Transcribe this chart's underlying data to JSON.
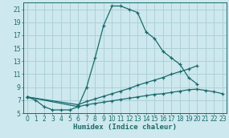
{
  "xlabel": "Humidex (Indice chaleur)",
  "background_color": "#cde8ee",
  "grid_color": "#aacdd6",
  "line_color": "#1a6b6b",
  "xlim": [
    -0.5,
    23.5
  ],
  "ylim": [
    5,
    22
  ],
  "yticks": [
    5,
    7,
    9,
    11,
    13,
    15,
    17,
    19,
    21
  ],
  "xticks": [
    0,
    1,
    2,
    3,
    4,
    5,
    6,
    7,
    8,
    9,
    10,
    11,
    12,
    13,
    14,
    15,
    16,
    17,
    18,
    19,
    20,
    21,
    22,
    23
  ],
  "s1x": [
    0,
    1,
    2,
    3,
    4,
    5,
    6,
    7,
    8,
    9,
    10,
    11,
    12,
    13,
    14,
    15,
    16,
    17,
    18,
    19,
    20
  ],
  "s1y": [
    7.5,
    7.0,
    6.0,
    5.5,
    5.5,
    5.5,
    6.0,
    9.0,
    13.5,
    18.5,
    21.5,
    21.5,
    21.0,
    20.5,
    17.5,
    16.5,
    14.5,
    13.5,
    12.5,
    10.5,
    9.5
  ],
  "s2x": [
    0,
    6,
    7,
    8,
    9,
    10,
    11,
    12,
    13,
    14,
    15,
    16,
    17,
    18,
    19,
    20
  ],
  "s2y": [
    7.5,
    6.3,
    6.8,
    7.2,
    7.6,
    8.0,
    8.4,
    8.8,
    9.3,
    9.7,
    10.1,
    10.5,
    11.0,
    11.4,
    11.8,
    12.3
  ],
  "s3x": [
    0,
    6,
    7,
    8,
    9,
    10,
    11,
    12,
    13,
    14,
    15,
    16,
    17,
    18,
    19,
    20,
    21,
    22,
    23
  ],
  "s3y": [
    7.5,
    6.0,
    6.3,
    6.5,
    6.7,
    6.9,
    7.1,
    7.3,
    7.5,
    7.7,
    7.9,
    8.0,
    8.2,
    8.4,
    8.6,
    8.7,
    8.5,
    8.3,
    8.0
  ]
}
